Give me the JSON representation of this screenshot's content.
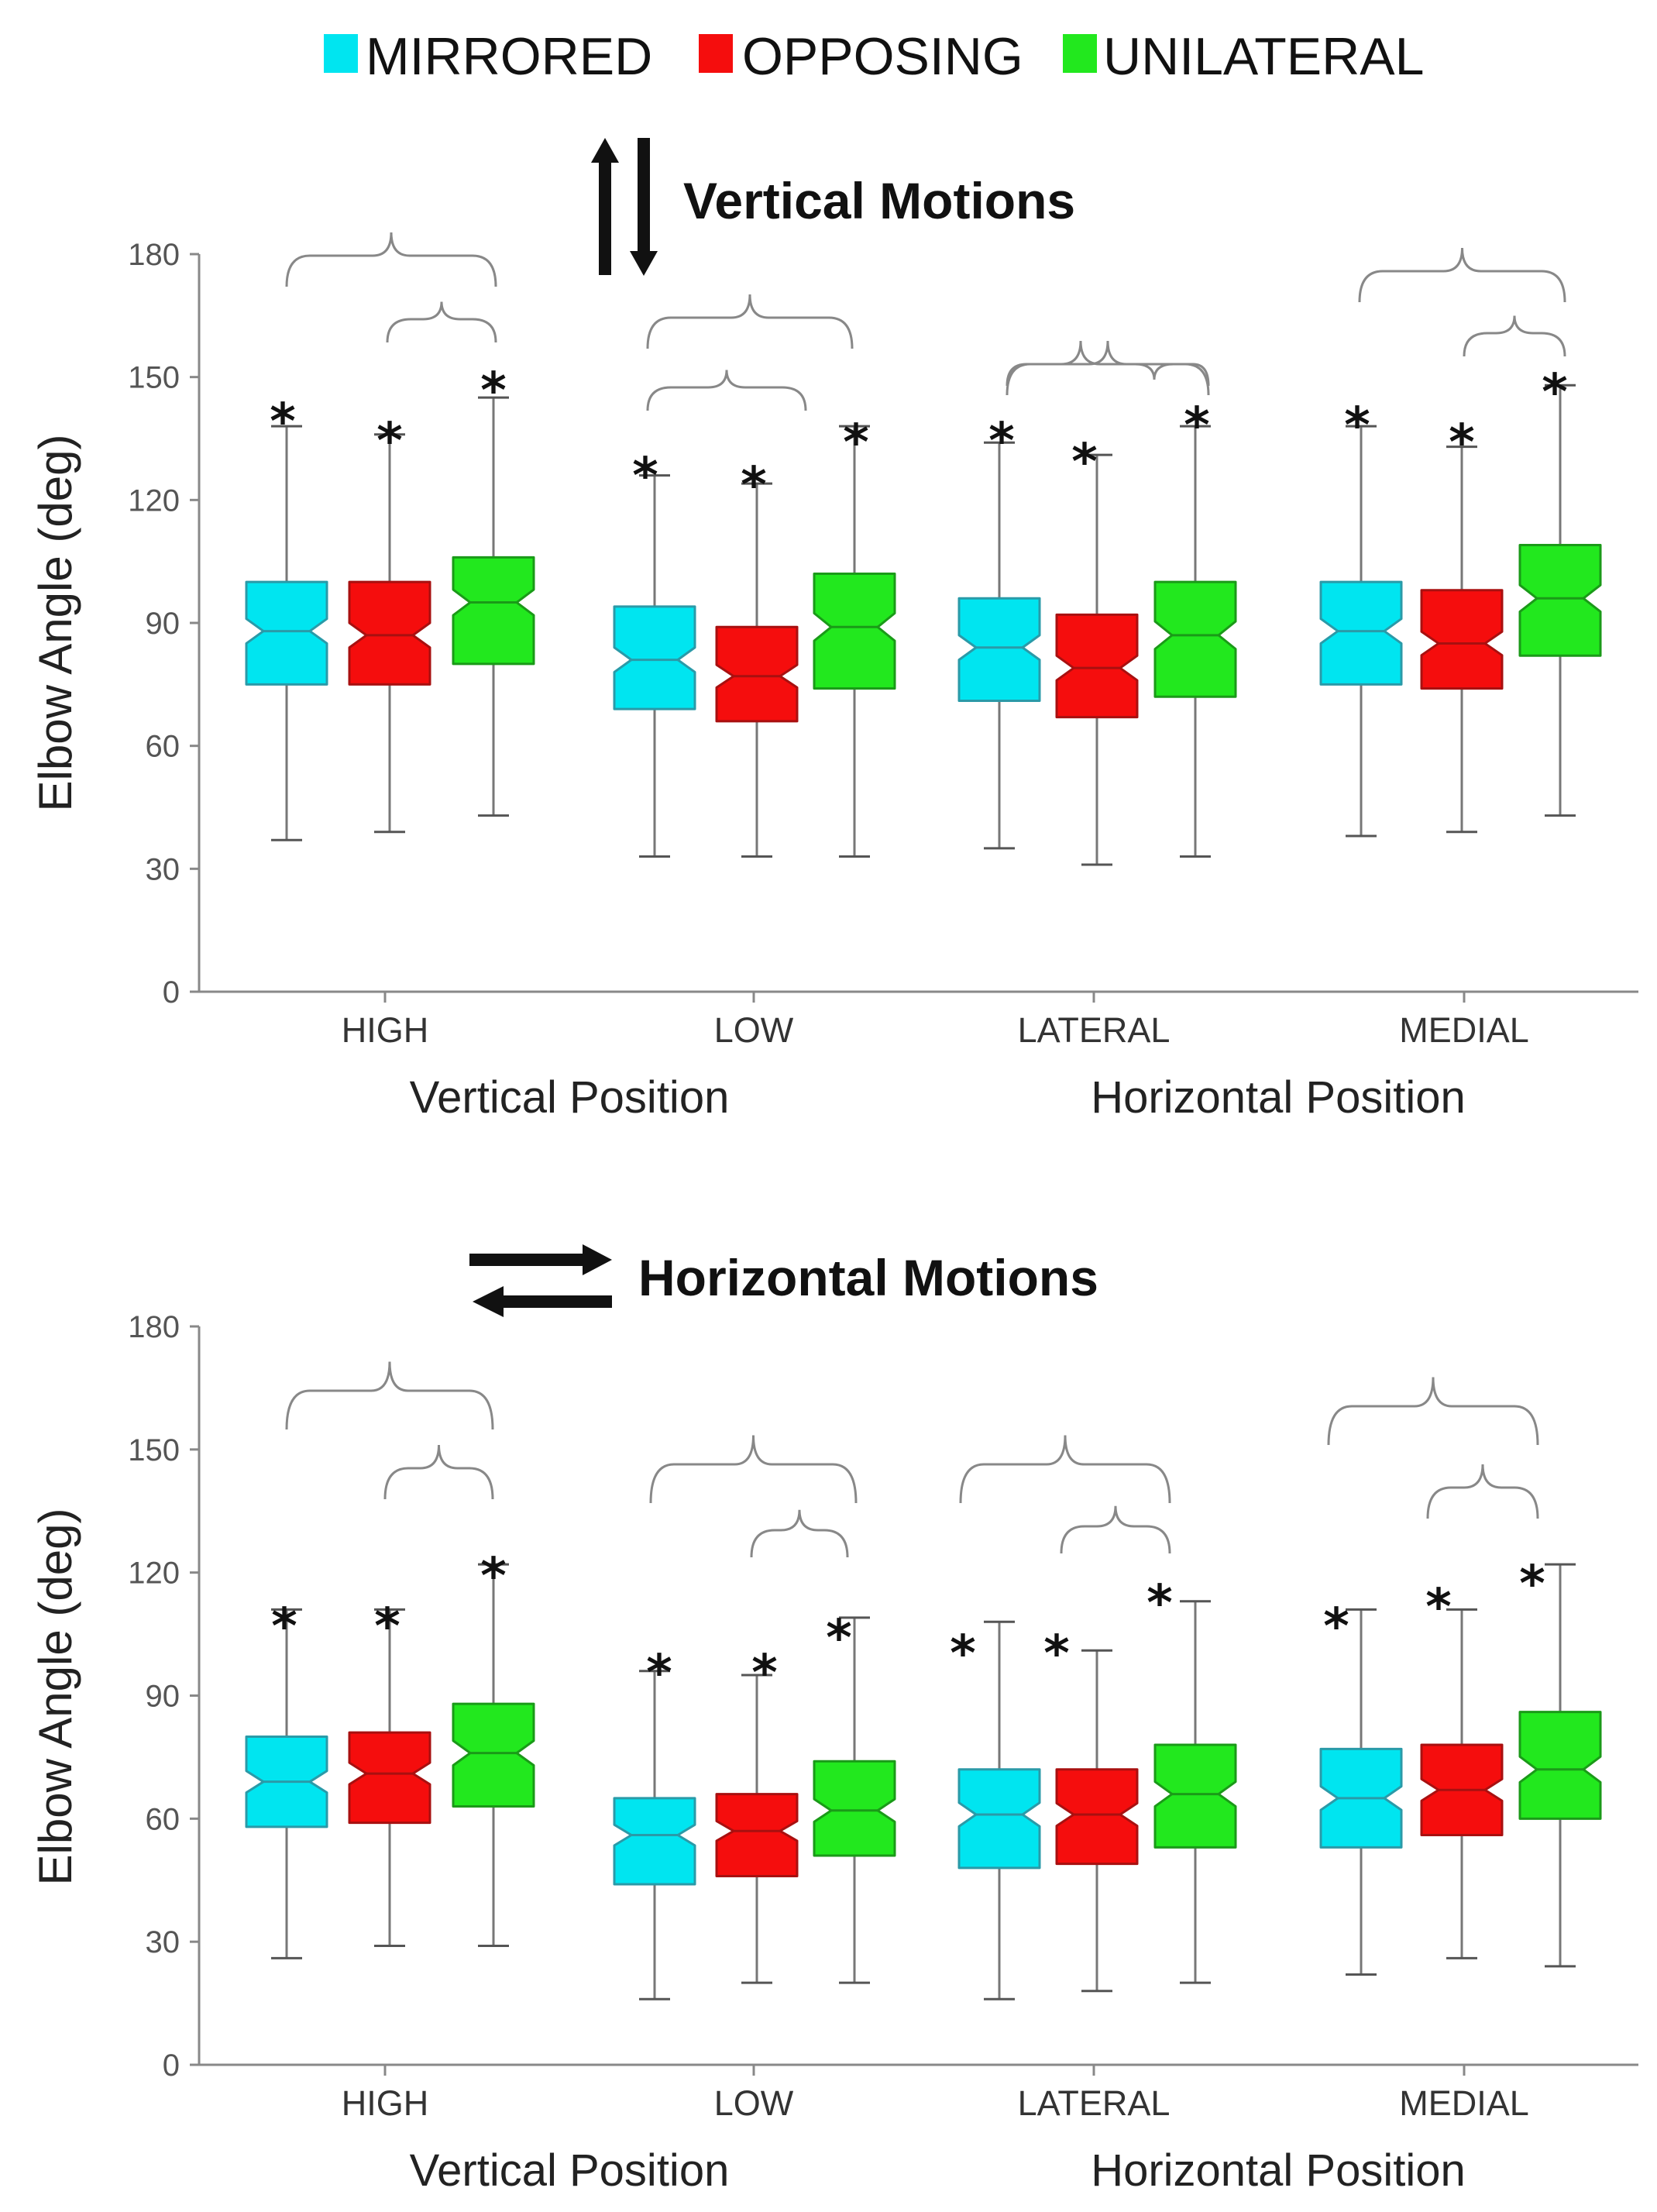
{
  "legend": [
    {
      "label": "MIRRORED",
      "color": "#00e5f0"
    },
    {
      "label": "OPPOSING",
      "color": "#f50d0d"
    },
    {
      "label": "UNILATERAL",
      "color": "#22e81e"
    }
  ],
  "chart_data": [
    {
      "type": "boxplot",
      "title": "Vertical Motions",
      "ylabel": "Elbow Angle (deg)",
      "ylim": [
        0,
        180
      ],
      "yticks": [
        0,
        30,
        60,
        90,
        120,
        150,
        180
      ],
      "categories": [
        "HIGH",
        "LOW",
        "LATERAL",
        "MEDIAL"
      ],
      "group_labels": [
        "Vertical Position",
        "Horizontal Position"
      ],
      "series": [
        {
          "name": "MIRRORED",
          "boxes": [
            {
              "min": 37,
              "q1": 75,
              "median": 88,
              "q3": 100,
              "max": 138
            },
            {
              "min": 33,
              "q1": 69,
              "median": 81,
              "q3": 94,
              "max": 126
            },
            {
              "min": 35,
              "q1": 71,
              "median": 84,
              "q3": 96,
              "max": 134
            },
            {
              "min": 38,
              "q1": 75,
              "median": 88,
              "q3": 100,
              "max": 138
            }
          ]
        },
        {
          "name": "OPPOSING",
          "boxes": [
            {
              "min": 39,
              "q1": 75,
              "median": 87,
              "q3": 100,
              "max": 136
            },
            {
              "min": 33,
              "q1": 66,
              "median": 77,
              "q3": 89,
              "max": 124
            },
            {
              "min": 31,
              "q1": 67,
              "median": 79,
              "q3": 92,
              "max": 131
            },
            {
              "min": 39,
              "q1": 74,
              "median": 85,
              "q3": 98,
              "max": 133
            }
          ]
        },
        {
          "name": "UNILATERAL",
          "boxes": [
            {
              "min": 43,
              "q1": 80,
              "median": 95,
              "q3": 106,
              "max": 145
            },
            {
              "min": 33,
              "q1": 74,
              "median": 89,
              "q3": 102,
              "max": 138
            },
            {
              "min": 33,
              "q1": 72,
              "median": 87,
              "q3": 100,
              "max": 138
            },
            {
              "min": 43,
              "q1": 82,
              "median": 96,
              "q3": 109,
              "max": 148
            }
          ]
        }
      ],
      "significance_stars": "*"
    },
    {
      "type": "boxplot",
      "title": "Horizontal Motions",
      "ylabel": "Elbow Angle (deg)",
      "ylim": [
        0,
        180
      ],
      "yticks": [
        0,
        30,
        60,
        90,
        120,
        150,
        180
      ],
      "categories": [
        "HIGH",
        "LOW",
        "LATERAL",
        "MEDIAL"
      ],
      "group_labels": [
        "Vertical Position",
        "Horizontal Position"
      ],
      "series": [
        {
          "name": "MIRRORED",
          "boxes": [
            {
              "min": 26,
              "q1": 58,
              "median": 69,
              "q3": 80,
              "max": 111
            },
            {
              "min": 16,
              "q1": 44,
              "median": 56,
              "q3": 65,
              "max": 96
            },
            {
              "min": 16,
              "q1": 48,
              "median": 61,
              "q3": 72,
              "max": 108
            },
            {
              "min": 22,
              "q1": 53,
              "median": 65,
              "q3": 77,
              "max": 111
            }
          ]
        },
        {
          "name": "OPPOSING",
          "boxes": [
            {
              "min": 29,
              "q1": 59,
              "median": 71,
              "q3": 81,
              "max": 111
            },
            {
              "min": 20,
              "q1": 46,
              "median": 57,
              "q3": 66,
              "max": 95
            },
            {
              "min": 18,
              "q1": 49,
              "median": 61,
              "q3": 72,
              "max": 101
            },
            {
              "min": 26,
              "q1": 56,
              "median": 67,
              "q3": 78,
              "max": 111
            }
          ]
        },
        {
          "name": "UNILATERAL",
          "boxes": [
            {
              "min": 29,
              "q1": 63,
              "median": 76,
              "q3": 88,
              "max": 122
            },
            {
              "min": 20,
              "q1": 51,
              "median": 62,
              "q3": 74,
              "max": 109
            },
            {
              "min": 20,
              "q1": 53,
              "median": 66,
              "q3": 78,
              "max": 113
            },
            {
              "min": 24,
              "q1": 60,
              "median": 72,
              "q3": 86,
              "max": 122
            }
          ]
        }
      ],
      "significance_stars": "*"
    }
  ]
}
